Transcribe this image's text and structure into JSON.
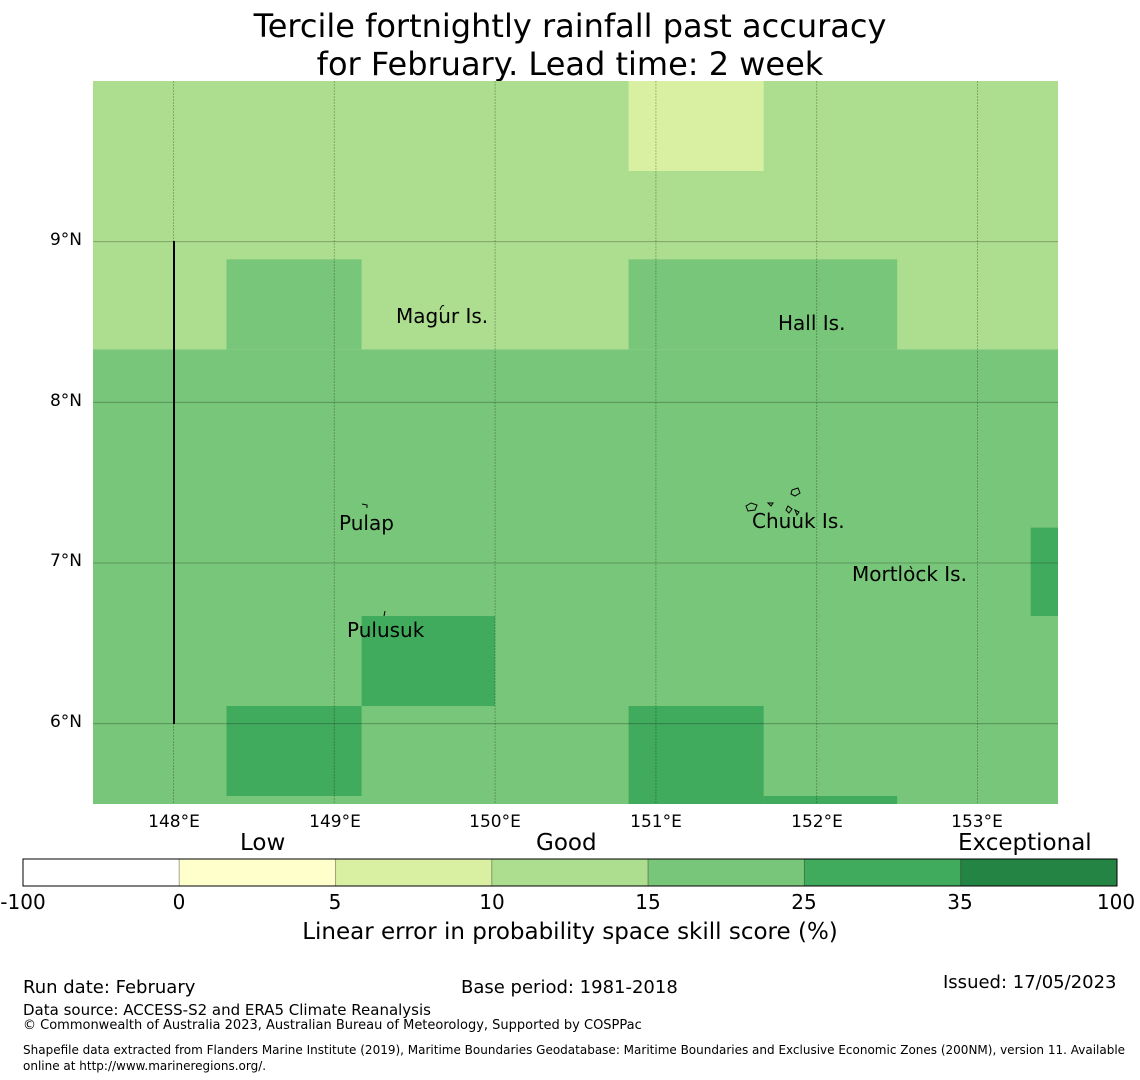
{
  "title": {
    "line1": "Tercile fortnightly rainfall past accuracy",
    "line2": "for February. Lead time: 2 week"
  },
  "map": {
    "lat_labels": [
      "9°N",
      "8°N",
      "7°N",
      "6°N"
    ],
    "lon_labels": [
      "148°E",
      "149°E",
      "150°E",
      "151°E",
      "152°E",
      "153°E"
    ],
    "lon_range": [
      147.5,
      153.5
    ],
    "lat_range": [
      5.5,
      10.0
    ],
    "places": [
      {
        "name": "Magur Is.",
        "lon": 149.7,
        "lat": 8.5
      },
      {
        "name": "Hall Is.",
        "lon": 151.98,
        "lat": 8.47
      },
      {
        "name": "Pulap",
        "lon": 149.2,
        "lat": 7.22
      },
      {
        "name": "Chuuk Is.",
        "lon": 151.89,
        "lat": 7.24
      },
      {
        "name": "Mortlock Is.",
        "lon": 152.59,
        "lat": 6.91
      },
      {
        "name": "Pulusuk",
        "lon": 149.33,
        "lat": 6.57
      }
    ],
    "skill_cells_note": "grid of skill-score categories (index into legend colors)",
    "skill_regions": [
      {
        "lon": [
          147.5,
          153.5
        ],
        "lat": [
          8.33,
          10.0
        ],
        "category": 3
      },
      {
        "lon": [
          150.83,
          151.67
        ],
        "lat": [
          9.44,
          10.0
        ],
        "category": 2
      },
      {
        "lon": [
          148.33,
          149.17
        ],
        "lat": [
          8.33,
          8.89
        ],
        "category": 4
      },
      {
        "lon": [
          150.83,
          152.5
        ],
        "lat": [
          8.33,
          8.89
        ],
        "category": 4
      },
      {
        "lon": [
          147.5,
          153.5
        ],
        "lat": [
          5.5,
          8.33
        ],
        "category": 4
      },
      {
        "lon": [
          149.17,
          150.0
        ],
        "lat": [
          6.11,
          6.67
        ],
        "category": 5
      },
      {
        "lon": [
          148.33,
          149.17
        ],
        "lat": [
          5.55,
          6.11
        ],
        "category": 5
      },
      {
        "lon": [
          150.83,
          151.67
        ],
        "lat": [
          5.5,
          6.11
        ],
        "category": 5
      },
      {
        "lon": [
          151.67,
          152.5
        ],
        "lat": [
          5.5,
          5.55
        ],
        "category": 5
      },
      {
        "lon": [
          153.33,
          153.5
        ],
        "lat": [
          6.67,
          7.22
        ],
        "category": 5
      }
    ]
  },
  "legend": {
    "categories": [
      "Low",
      "Good",
      "Exceptional"
    ],
    "ticks": [
      "-100",
      "0",
      "5",
      "10",
      "15",
      "25",
      "35",
      "100"
    ],
    "colors": [
      "#ffffff",
      "#ffffcc",
      "#d9f0a3",
      "#addd8e",
      "#78c679",
      "#41ab5d",
      "#238443"
    ],
    "title": "Linear error in probability space skill score (%)"
  },
  "footer": {
    "run_date": "Run date: February",
    "base_period": "Base period: 1981-2018",
    "issued": "Issued: 17/05/2023",
    "data_source": "Data source: ACCESS-S2 and ERA5 Climate Reanalysis",
    "copyright": "© Commonwealth of Australia 2023, Australian Bureau of Meteorology, Supported by COSPPac",
    "shapefile": "Shapefile data extracted from Flanders Marine Institute (2019), Maritime Boundaries Geodatabase: Maritime Boundaries and Exclusive Economic Zones (200NM), version 11. Available online at http://www.marineregions.org/."
  }
}
